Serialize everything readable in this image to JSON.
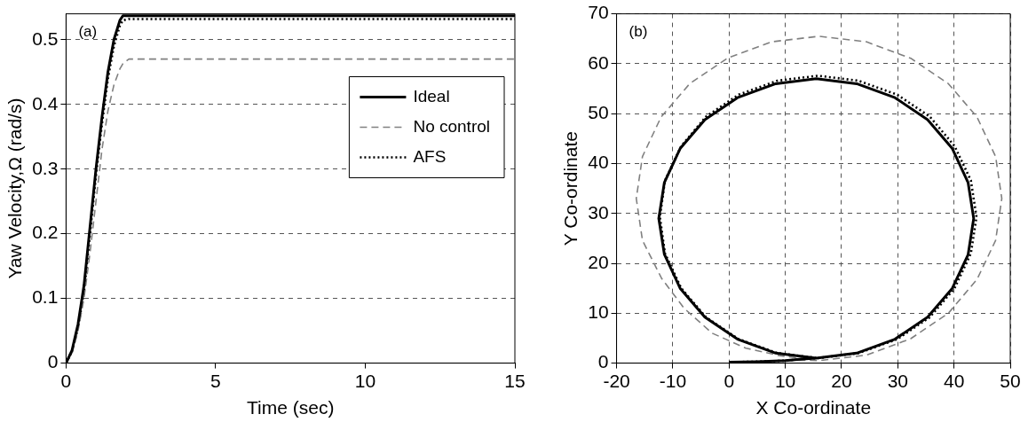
{
  "chart_data": [
    {
      "type": "line",
      "xlabel": "Time (sec)",
      "ylabel": "Yaw Velocity,Ω (rad/s)",
      "annotations": [
        "(a)"
      ],
      "x": [
        0,
        0.2,
        0.4,
        0.6,
        0.8,
        1.0,
        1.2,
        1.4,
        1.6,
        1.8,
        1.9,
        2.1,
        2.3,
        5,
        10,
        15
      ],
      "xlim": [
        0,
        15
      ],
      "ylim": [
        0,
        0.54
      ],
      "xticks": [
        0,
        5,
        10,
        15
      ],
      "yticks": [
        0,
        0.1,
        0.2,
        0.3,
        0.4,
        0.5
      ],
      "grid": "y",
      "legend": "top right",
      "marker": "none",
      "series": [
        {
          "name": "Ideal",
          "color": "#000000",
          "line_style": "solid",
          "values": [
            0,
            0.02,
            0.06,
            0.12,
            0.21,
            0.3,
            0.38,
            0.45,
            0.5,
            0.53,
            0.537,
            0.537,
            0.537,
            0.537,
            0.537,
            0.537
          ]
        },
        {
          "name": "No control",
          "color": "#808080",
          "line_style": "dashed",
          "values": [
            0,
            0.015,
            0.05,
            0.1,
            0.17,
            0.25,
            0.33,
            0.39,
            0.43,
            0.455,
            0.463,
            0.47,
            0.47,
            0.47,
            0.47,
            0.47
          ]
        },
        {
          "name": "AFS",
          "color": "#000000",
          "line_style": "dotted",
          "values": [
            0,
            0.018,
            0.055,
            0.11,
            0.2,
            0.29,
            0.37,
            0.44,
            0.49,
            0.522,
            0.53,
            0.532,
            0.532,
            0.532,
            0.532,
            0.532
          ]
        }
      ]
    },
    {
      "type": "line",
      "xlabel": "X Co-ordinate",
      "ylabel": "Y Co-ordinate",
      "annotations": [
        "(b)"
      ],
      "xlim": [
        -20,
        50
      ],
      "ylim": [
        0,
        70
      ],
      "xticks": [
        -20,
        -10,
        0,
        10,
        20,
        30,
        40,
        50
      ],
      "yticks": [
        0,
        10,
        20,
        30,
        40,
        50,
        60,
        70
      ],
      "grid": true,
      "legend": false,
      "marker": "none",
      "series": [
        {
          "color": "#000000",
          "line_style": "solid",
          "x": [
            0,
            5,
            10,
            13,
            15.5,
            22.7,
            29.5,
            35.3,
            39.7,
            42.5,
            43.5,
            42.5,
            39.7,
            35.3,
            29.5,
            22.7,
            15.5,
            8.3,
            1.5,
            -4.3,
            -8.7,
            -11.5,
            -12.5,
            -11.5,
            -8.7,
            -4.3,
            1.5,
            8.3,
            15.5
          ],
          "values": [
            0.2,
            0.3,
            0.5,
            0.8,
            1,
            2,
            4.8,
            9.2,
            15,
            21.7,
            29,
            36.2,
            43,
            48.8,
            53.2,
            56,
            57,
            56,
            53.2,
            48.8,
            43,
            36.2,
            29,
            21.8,
            15,
            9.2,
            4.8,
            2,
            1
          ]
        },
        {
          "color": "#808080",
          "line_style": "dashed",
          "x": [
            0,
            5,
            10,
            13,
            16,
            24.4,
            32.3,
            39,
            44.1,
            47.4,
            48.5,
            47.4,
            44.1,
            39,
            32.3,
            24.4,
            16,
            7.6,
            -0.3,
            -7,
            -12.1,
            -15.4,
            -16.5,
            -15.4,
            -12,
            -8,
            -3,
            3,
            9,
            14
          ],
          "values": [
            0.2,
            0.3,
            0.5,
            0.6,
            0.5,
            1.6,
            4.9,
            10,
            16.8,
            24.6,
            33,
            41.4,
            49.3,
            56,
            61.1,
            64.4,
            65.5,
            64.4,
            61.1,
            56,
            49.3,
            41.4,
            33,
            24.6,
            17,
            11,
            6,
            3,
            1.5,
            0.8
          ]
        },
        {
          "color": "#000000",
          "line_style": "dotted",
          "x": [
            0,
            5,
            10,
            13,
            15.8,
            23,
            29.9,
            35.7,
            40.1,
            43,
            44,
            43,
            40.1,
            35.7,
            29.9,
            23,
            15.8,
            8.6,
            1.7,
            -4.1,
            -8.5,
            -11.4,
            -12.3,
            -11.4,
            -8.5,
            -4.1,
            1.7,
            8.6,
            15.8
          ],
          "values": [
            0.2,
            0.3,
            0.5,
            0.8,
            1,
            2,
            4.8,
            9.2,
            15,
            22,
            29.3,
            36.6,
            43.5,
            49.4,
            53.8,
            56.6,
            57.6,
            56.6,
            53.8,
            49.4,
            43.5,
            36.6,
            29.3,
            22,
            15,
            9.2,
            4.8,
            2,
            1
          ]
        }
      ]
    }
  ]
}
